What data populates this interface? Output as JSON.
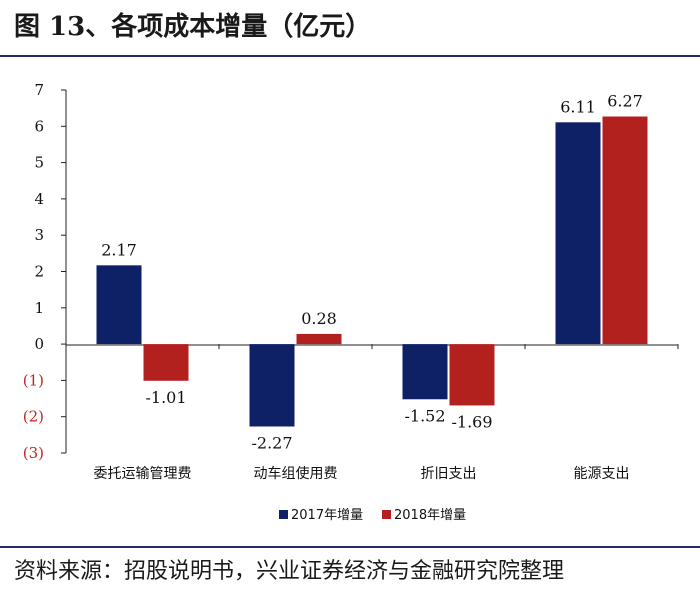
{
  "header": {
    "title": "图 13、各项成本增量（亿元）"
  },
  "footer": {
    "source": "资料来源：招股说明书，兴业证券经济与金融研究院整理"
  },
  "chart_data": {
    "type": "bar",
    "title": "图 13、各项成本增量（亿元）",
    "xlabel": "",
    "ylabel": "",
    "ylim": [
      -3,
      7
    ],
    "yticks": [
      7,
      6,
      5,
      4,
      3,
      2,
      1,
      0,
      -1,
      -2,
      -3
    ],
    "ytick_labels": [
      "7",
      "6",
      "5",
      "4",
      "3",
      "2",
      "1",
      "0",
      "(1)",
      "(2)",
      "(3)"
    ],
    "categories": [
      "委托运输管理费",
      "动车组使用费",
      "折旧支出",
      "能源支出"
    ],
    "series": [
      {
        "name": "2017年增量",
        "color": "#0e2166",
        "values": [
          2.17,
          -2.27,
          -1.52,
          6.11
        ],
        "labels": [
          "2.17",
          "-2.27",
          "-1.52",
          "6.11"
        ]
      },
      {
        "name": "2018年增量",
        "color": "#b3211f",
        "values": [
          -1.01,
          0.28,
          -1.69,
          6.27
        ],
        "labels": [
          "-1.01",
          "0.28",
          "-1.69",
          "6.27"
        ]
      }
    ],
    "negative_tick_color": "#c0251f",
    "legend": "bottom-center",
    "grid": false
  }
}
